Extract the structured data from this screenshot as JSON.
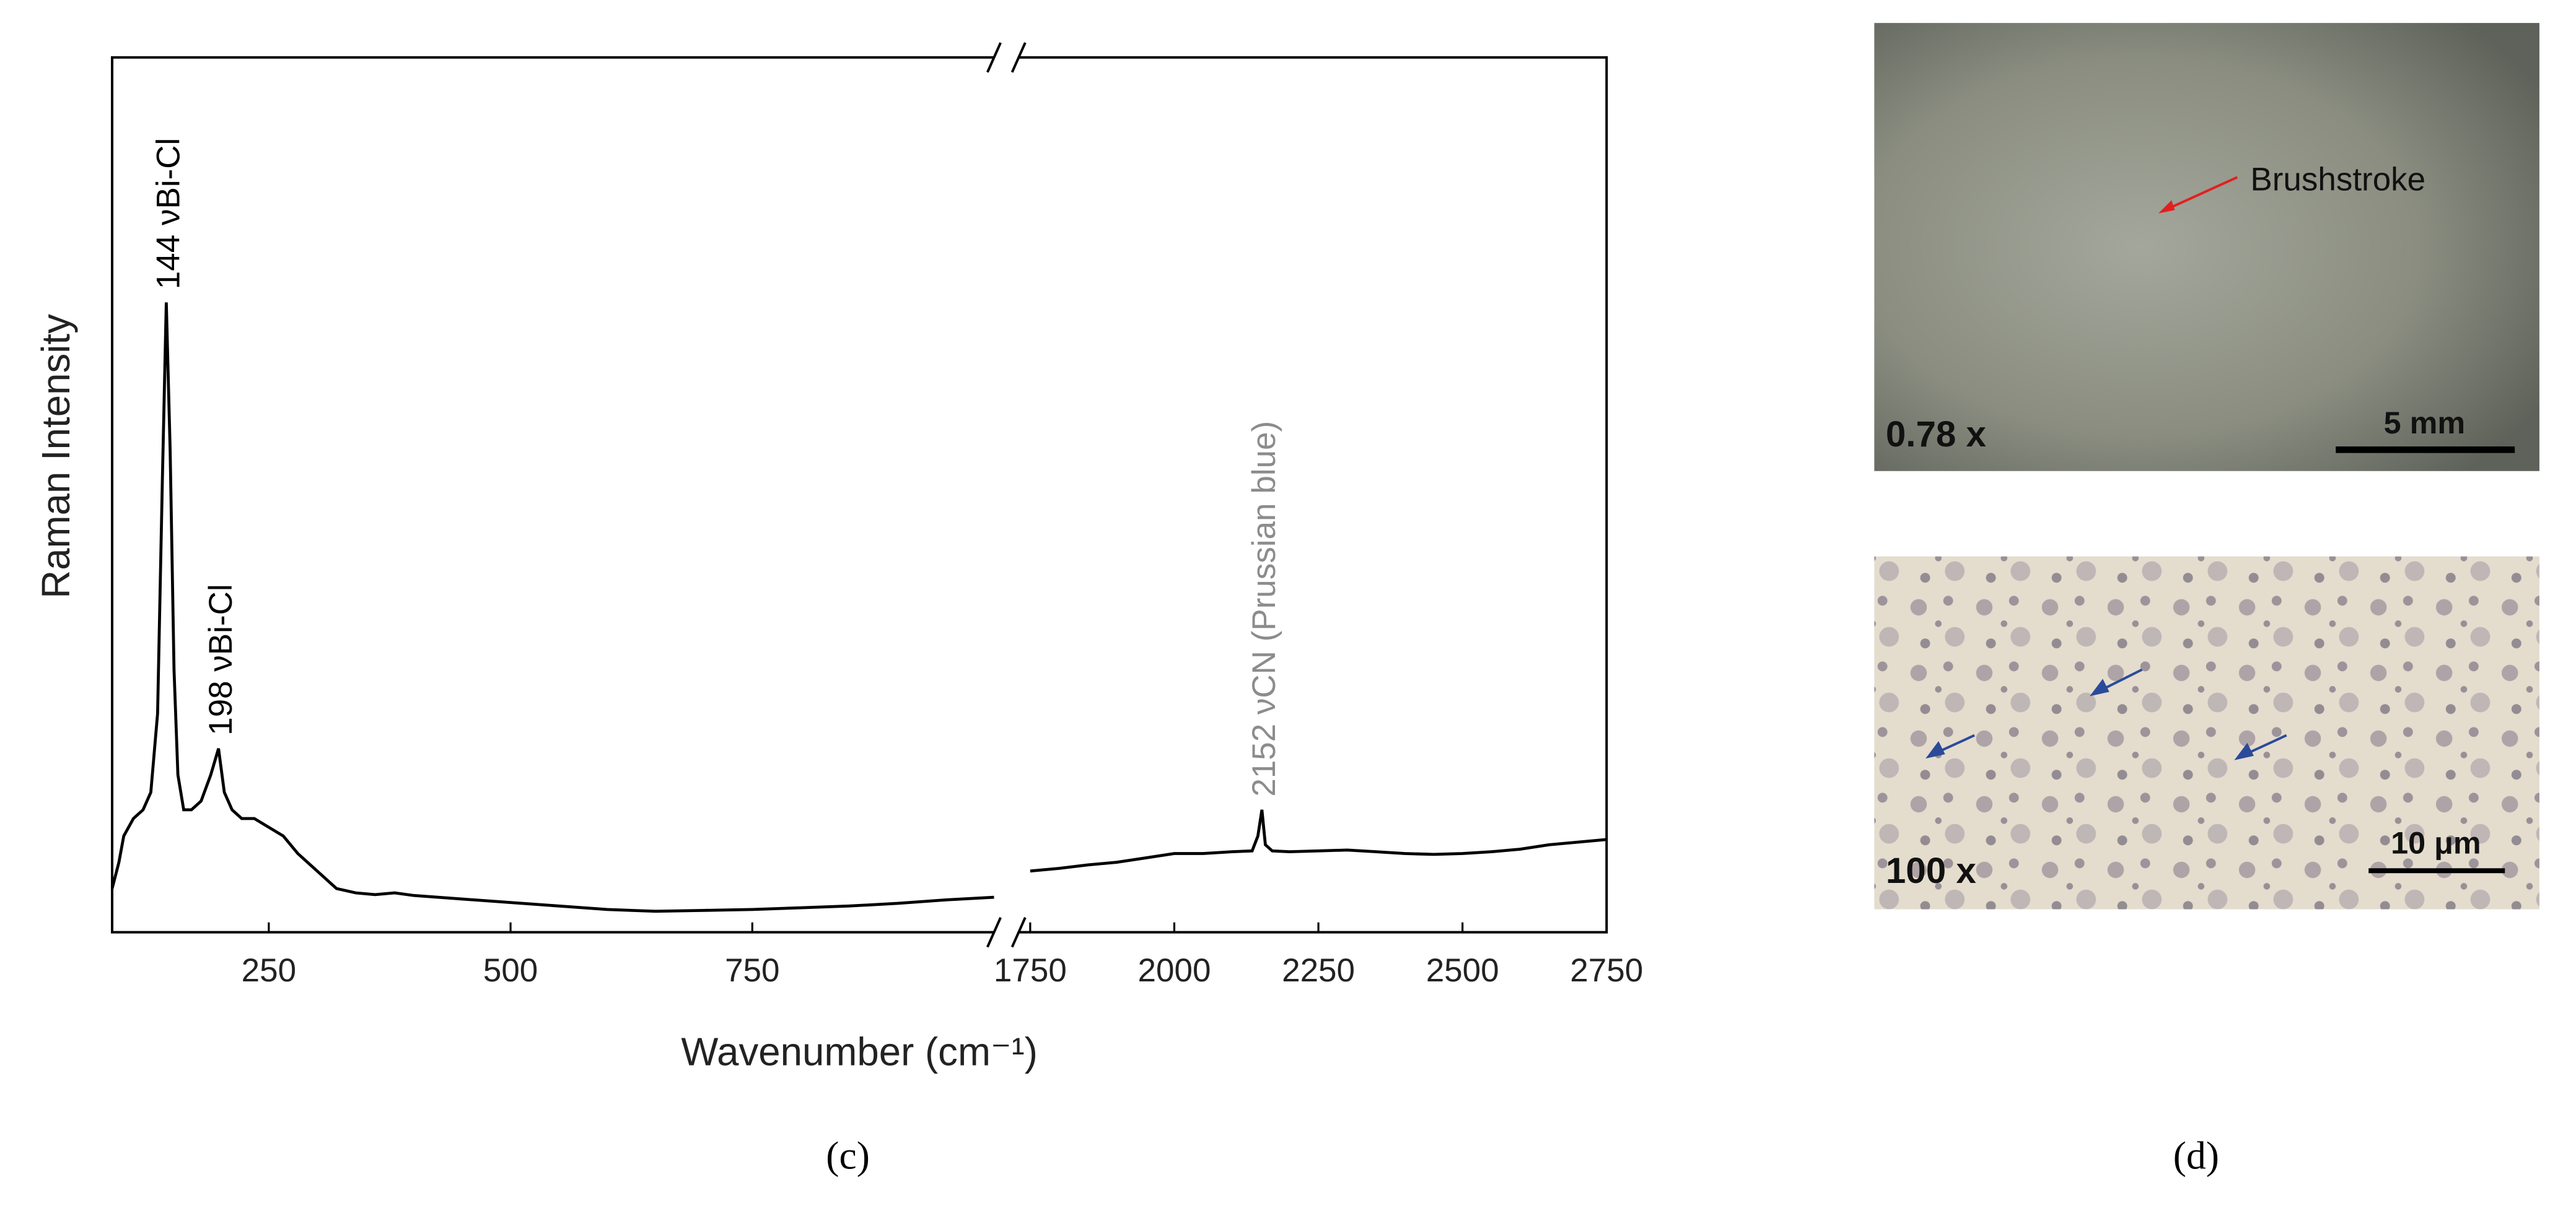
{
  "chart_data": {
    "type": "line",
    "color": "#000000",
    "xlabel": "Wavenumber (cm⁻¹)",
    "ylabel": "Raman Intensity",
    "caption": "(c)",
    "ylim": [
      0,
      100
    ],
    "segments": [
      {
        "xlim": [
          88,
          1000
        ],
        "xticks": [
          250,
          500,
          750
        ],
        "x": [
          88,
          95,
          100,
          110,
          120,
          128,
          135,
          140,
          144,
          148,
          152,
          156,
          162,
          170,
          180,
          190,
          198,
          204,
          212,
          222,
          235,
          250,
          265,
          280,
          300,
          320,
          340,
          360,
          380,
          400,
          450,
          500,
          550,
          600,
          650,
          700,
          750,
          800,
          850,
          900,
          950,
          1000
        ],
        "values": [
          5,
          8,
          11,
          13,
          14,
          16,
          25,
          52,
          72,
          55,
          30,
          18,
          14,
          14,
          15,
          18,
          21,
          16,
          14,
          13,
          13,
          12,
          11,
          9,
          7,
          5,
          4.5,
          4.3,
          4.5,
          4.2,
          3.8,
          3.4,
          3,
          2.6,
          2.4,
          2.5,
          2.6,
          2.8,
          3,
          3.3,
          3.7,
          4
        ]
      },
      {
        "xlim": [
          1730,
          2750
        ],
        "xticks": [
          1750,
          2000,
          2250,
          2500,
          2750
        ],
        "x": [
          1750,
          1800,
          1850,
          1900,
          1950,
          2000,
          2050,
          2100,
          2135,
          2145,
          2152,
          2158,
          2170,
          2200,
          2250,
          2300,
          2350,
          2400,
          2450,
          2500,
          2550,
          2600,
          2650,
          2700,
          2750
        ],
        "values": [
          7,
          7.3,
          7.7,
          8,
          8.5,
          9,
          9,
          9.2,
          9.3,
          11,
          14,
          10,
          9.3,
          9.2,
          9.3,
          9.4,
          9.2,
          9,
          8.9,
          9,
          9.2,
          9.5,
          10,
          10.3,
          10.6
        ]
      }
    ],
    "annotations": [
      {
        "text": "144 νBi-Cl",
        "x": 144,
        "segment": 0,
        "color": "#000000"
      },
      {
        "text": "198 νBi-Cl",
        "x": 198,
        "segment": 0,
        "color": "#000000"
      },
      {
        "text": "2152 νCN (Prussian blue)",
        "x": 2152,
        "segment": 1,
        "color": "#8c8c8c"
      }
    ]
  },
  "panel_d": {
    "caption": "(d)",
    "top_image": {
      "arrow_label": "Brushstroke",
      "magnification": "0.78 x",
      "scale": "5 mm"
    },
    "bottom_image": {
      "magnification": "100 x",
      "scale": "10 μm"
    }
  }
}
